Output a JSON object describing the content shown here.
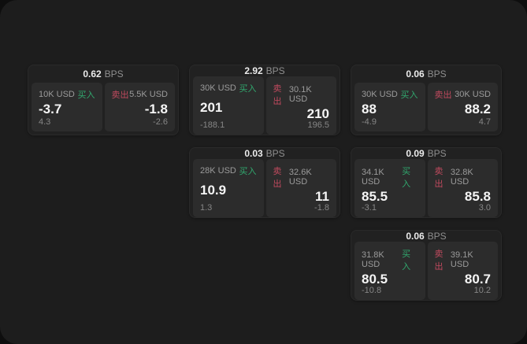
{
  "page": {
    "bps_unit": "BPS",
    "buy_label": "买入",
    "sell_label": "卖出"
  },
  "colors": {
    "buy": "#31a86e",
    "sell": "#c04a5e",
    "canvas_bg": "#1d1d1d",
    "card_bg": "#212121",
    "panel_bg": "#2c2c2c"
  },
  "cards": [
    {
      "bps": "0.62",
      "col": 1,
      "row": 1,
      "buy": {
        "size": "10K USD",
        "price": "-3.7",
        "delta": "4.3"
      },
      "sell": {
        "size": "5.5K USD",
        "price": "-1.8",
        "delta": "-2.6"
      }
    },
    {
      "bps": "2.92",
      "col": 2,
      "row": 1,
      "buy": {
        "size": "30K USD",
        "price": "201",
        "delta": "-188.1"
      },
      "sell": {
        "size": "30.1K USD",
        "price": "210",
        "delta": "196.5"
      }
    },
    {
      "bps": "0.06",
      "col": 3,
      "row": 1,
      "buy": {
        "size": "30K USD",
        "price": "88",
        "delta": "-4.9"
      },
      "sell": {
        "size": "30K USD",
        "price": "88.2",
        "delta": "4.7"
      }
    },
    {
      "bps": "0.03",
      "col": 2,
      "row": 2,
      "buy": {
        "size": "28K USD",
        "price": "10.9",
        "delta": "1.3"
      },
      "sell": {
        "size": "32.6K USD",
        "price": "11",
        "delta": "-1.8"
      }
    },
    {
      "bps": "0.09",
      "col": 3,
      "row": 2,
      "buy": {
        "size": "34.1K USD",
        "price": "85.5",
        "delta": "-3.1"
      },
      "sell": {
        "size": "32.8K USD",
        "price": "85.8",
        "delta": "3.0"
      }
    },
    {
      "bps": "0.06",
      "col": 3,
      "row": 3,
      "buy": {
        "size": "31.8K USD",
        "price": "80.5",
        "delta": "-10.8"
      },
      "sell": {
        "size": "39.1K USD",
        "price": "80.7",
        "delta": "10.2"
      }
    }
  ]
}
